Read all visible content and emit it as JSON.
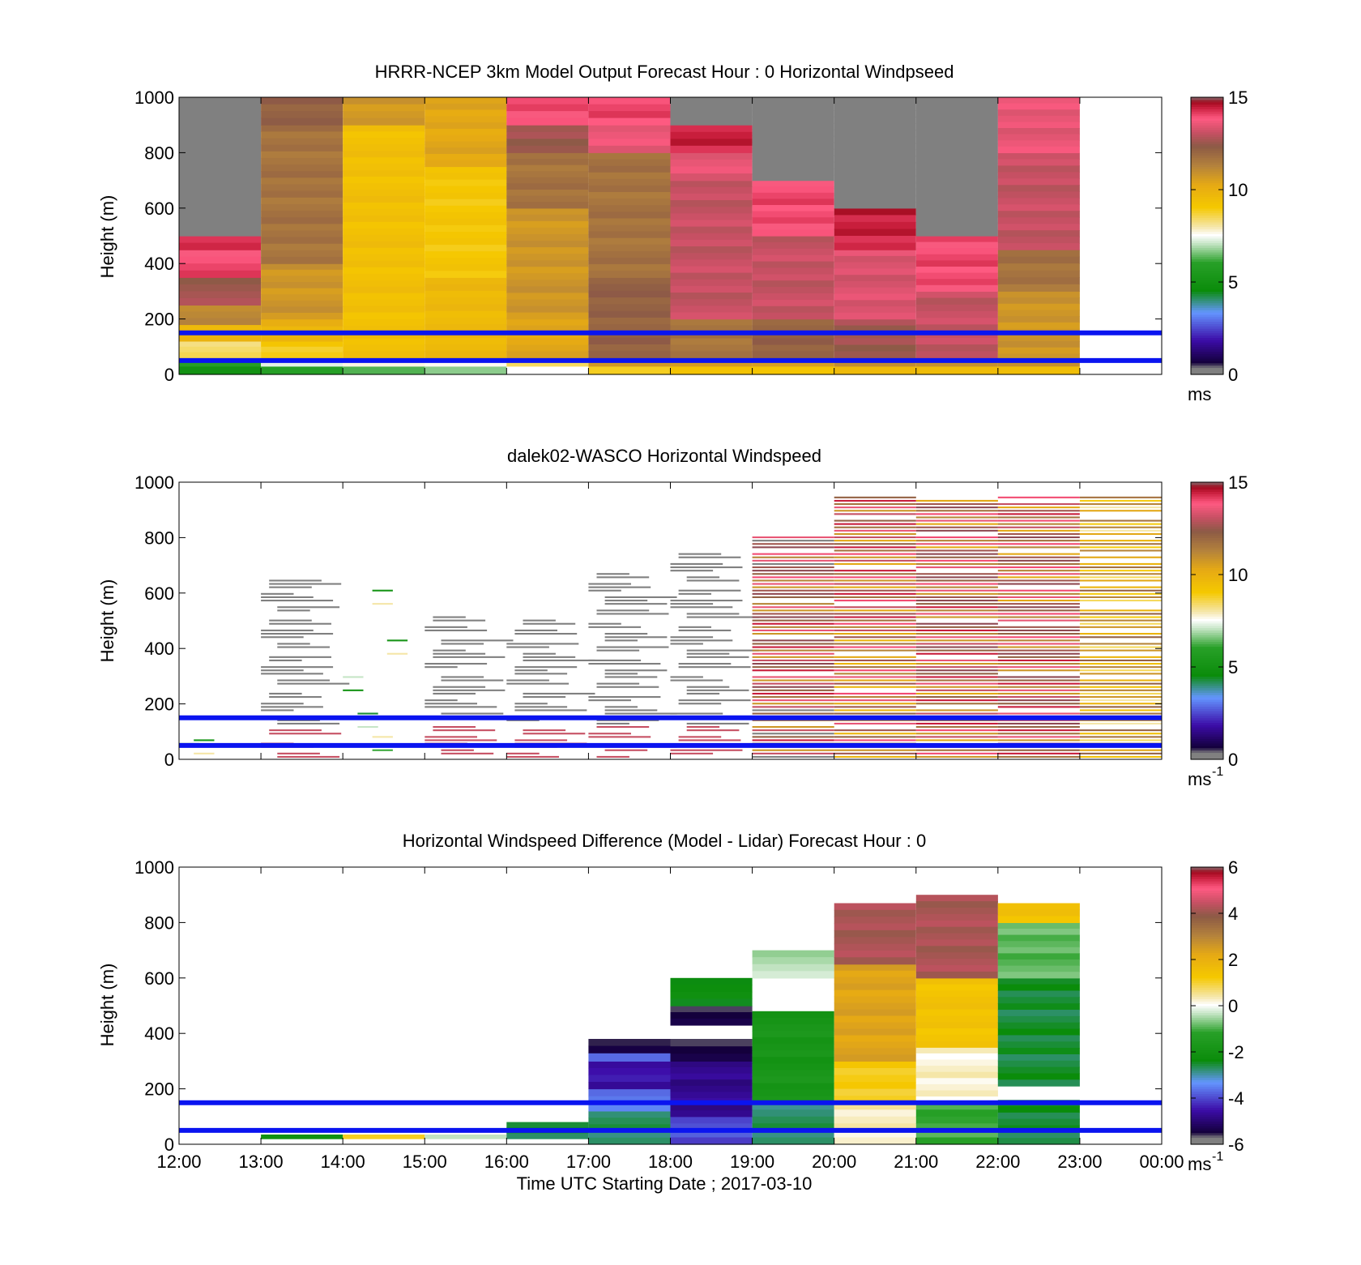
{
  "figure": {
    "xlabel": "Time UTC  Starting Date ; 2017-03-10",
    "x_ticks": [
      "12:00",
      "13:00",
      "14:00",
      "15:00",
      "16:00",
      "17:00",
      "18:00",
      "19:00",
      "20:00",
      "21:00",
      "22:00",
      "23:00",
      "00:00"
    ]
  },
  "chart_data": [
    {
      "type": "heatmap",
      "title": "HRRR-NCEP 3km Model Output   Forecast Hour : 0 Horizontal Windpseed",
      "ylabel": "Height (m)",
      "ylim": [
        0,
        1000
      ],
      "y_ticks": [
        "0",
        "200",
        "400",
        "600",
        "800",
        "1000"
      ],
      "xlim": [
        "12:00",
        "00:00"
      ],
      "colorbar": {
        "range": [
          0,
          15
        ],
        "ticks": [
          "0",
          "5",
          "10",
          "15"
        ],
        "unit": "ms"
      },
      "reference_lines_m": [
        50,
        150
      ],
      "reference_line_color": "#0a14f0",
      "missing_color": "#808080",
      "columns": [
        {
          "time": "12:00",
          "cells": [
            [
              0,
              30,
              5
            ],
            [
              30,
              60,
              6
            ],
            [
              60,
              120,
              8.5
            ],
            [
              120,
              180,
              10
            ],
            [
              180,
              250,
              11.5
            ],
            [
              250,
              350,
              13
            ],
            [
              350,
              450,
              14.5
            ],
            [
              450,
              500,
              15
            ],
            [
              500,
              1000,
              null
            ]
          ]
        },
        {
          "time": "13:00",
          "cells": [
            [
              0,
              30,
              5.5
            ],
            [
              30,
              60,
              7
            ],
            [
              60,
              120,
              9
            ],
            [
              120,
              200,
              10
            ],
            [
              200,
              400,
              11
            ],
            [
              400,
              900,
              12
            ],
            [
              900,
              1000,
              12.5
            ]
          ]
        },
        {
          "time": "14:00",
          "cells": [
            [
              0,
              30,
              6
            ],
            [
              30,
              60,
              7.5
            ],
            [
              60,
              900,
              9.5
            ],
            [
              900,
              1000,
              11
            ]
          ]
        },
        {
          "time": "15:00",
          "cells": [
            [
              0,
              30,
              6.5
            ],
            [
              30,
              60,
              7.5
            ],
            [
              60,
              350,
              9.8
            ],
            [
              350,
              750,
              9.2
            ],
            [
              750,
              1000,
              10.5
            ]
          ]
        },
        {
          "time": "16:00",
          "cells": [
            [
              0,
              30,
              7.5
            ],
            [
              30,
              60,
              8.5
            ],
            [
              60,
              200,
              10.5
            ],
            [
              200,
              600,
              11
            ],
            [
              600,
              800,
              12
            ],
            [
              800,
              900,
              13
            ],
            [
              900,
              1000,
              14.5
            ]
          ]
        },
        {
          "time": "17:00",
          "cells": [
            [
              0,
              30,
              9
            ],
            [
              30,
              60,
              11
            ],
            [
              60,
              350,
              12.5
            ],
            [
              350,
              800,
              12
            ],
            [
              800,
              900,
              14
            ],
            [
              900,
              1000,
              14.5
            ]
          ]
        },
        {
          "time": "18:00",
          "cells": [
            [
              0,
              30,
              9.5
            ],
            [
              30,
              60,
              11
            ],
            [
              60,
              200,
              12
            ],
            [
              200,
              700,
              13.5
            ],
            [
              700,
              800,
              14
            ],
            [
              800,
              900,
              15
            ],
            [
              900,
              1000,
              null
            ]
          ]
        },
        {
          "time": "19:00",
          "cells": [
            [
              0,
              30,
              9.5
            ],
            [
              30,
              60,
              11
            ],
            [
              60,
              200,
              12.5
            ],
            [
              200,
              500,
              13.5
            ],
            [
              500,
              700,
              14.5
            ],
            [
              700,
              1000,
              null
            ]
          ]
        },
        {
          "time": "20:00",
          "cells": [
            [
              0,
              30,
              9.5
            ],
            [
              30,
              60,
              11
            ],
            [
              60,
              200,
              13
            ],
            [
              200,
              450,
              13.8
            ],
            [
              450,
              600,
              15
            ],
            [
              600,
              1000,
              null
            ]
          ]
        },
        {
          "time": "21:00",
          "cells": [
            [
              0,
              30,
              9.5
            ],
            [
              30,
              60,
              11
            ],
            [
              60,
              300,
              13.5
            ],
            [
              300,
              500,
              14.5
            ],
            [
              500,
              1000,
              null
            ]
          ]
        },
        {
          "time": "22:00",
          "cells": [
            [
              0,
              30,
              9.5
            ],
            [
              30,
              300,
              11
            ],
            [
              300,
              450,
              12
            ],
            [
              450,
              800,
              13.5
            ],
            [
              800,
              1000,
              14
            ]
          ]
        }
      ]
    },
    {
      "type": "heatmap",
      "title": "dalek02-WASCO  Horizontal Windspeed",
      "ylabel": "Height (m)",
      "ylim": [
        0,
        1000
      ],
      "y_ticks": [
        "0",
        "200",
        "400",
        "600",
        "800",
        "1000"
      ],
      "xlim": [
        "12:00",
        "00:00"
      ],
      "colorbar": {
        "range": [
          0,
          15
        ],
        "ticks": [
          "0",
          "5",
          "10",
          "15"
        ],
        "unit": "ms",
        "unit_exponent": "-1"
      },
      "reference_lines_m": [
        50,
        150
      ],
      "reference_line_color": "#0a14f0",
      "missing_color": "#808080",
      "summary_by_hour": [
        {
          "time": "12:00",
          "coverage_top_m": 100,
          "typical_speed": 7,
          "note": "sparse low-level returns"
        },
        {
          "time": "13:00",
          "coverage_top_m": 650,
          "typical_speed": null,
          "note": "sparse returns, mostly missing"
        },
        {
          "time": "14:00",
          "coverage_top_m": 670,
          "typical_speed": 6,
          "note": "sparse returns"
        },
        {
          "time": "15:00",
          "coverage_top_m": 520,
          "typical_speed": null,
          "note": "sparse returns"
        },
        {
          "time": "16:00",
          "coverage_top_m": 500,
          "typical_speed": null,
          "note": "gray coverage begins mid-hour"
        },
        {
          "time": "17:00",
          "coverage_top_m": 700,
          "typical_speed": null,
          "note": "mostly gray, red near surface"
        },
        {
          "time": "18:00",
          "coverage_top_m": 750,
          "typical_speed": null,
          "note": "mostly gray"
        },
        {
          "time": "19:00",
          "coverage_top_m": 800,
          "typical_speed": 13.5,
          "note": "dense pink/red"
        },
        {
          "time": "20:00",
          "coverage_top_m": 950,
          "typical_speed": 12.5,
          "note": "dense brown/pink"
        },
        {
          "time": "21:00",
          "coverage_top_m": 950,
          "typical_speed": 13,
          "note": "dense pink/brown"
        },
        {
          "time": "22:00",
          "coverage_top_m": 950,
          "typical_speed": 13,
          "note": "dense pink/red"
        },
        {
          "time": "23:00",
          "coverage_top_m": 950,
          "typical_speed": 10,
          "note": "dense yellow/brown"
        }
      ]
    },
    {
      "type": "heatmap",
      "title": "Horizontal Windspeed Difference (Model - Lidar) Forecast Hour : 0",
      "ylabel": "Height (m)",
      "ylim": [
        0,
        1000
      ],
      "y_ticks": [
        "0",
        "200",
        "400",
        "600",
        "800",
        "1000"
      ],
      "xlim": [
        "12:00",
        "00:00"
      ],
      "colorbar": {
        "range": [
          -6,
          6
        ],
        "ticks": [
          "-6",
          "-4",
          "-2",
          "0",
          "2",
          "4",
          "6"
        ],
        "unit": "ms",
        "unit_exponent": "-1"
      },
      "reference_lines_m": [
        50,
        150
      ],
      "reference_line_color": "#0a14f0",
      "columns": [
        {
          "time": "13:00",
          "cells": [
            [
              20,
              35,
              -2.5
            ]
          ]
        },
        {
          "time": "14:00",
          "cells": [
            [
              20,
              35,
              1
            ]
          ]
        },
        {
          "time": "15:00",
          "cells": [
            [
              20,
              35,
              -0.5
            ]
          ]
        },
        {
          "time": "16:00",
          "cells": [
            [
              20,
              80,
              -2.8
            ]
          ]
        },
        {
          "time": "17:00",
          "cells": [
            [
              0,
              120,
              -3
            ],
            [
              120,
              200,
              -4
            ],
            [
              200,
              300,
              -5
            ],
            [
              300,
              330,
              -4
            ],
            [
              330,
              380,
              -6
            ]
          ]
        },
        {
          "time": "18:00",
          "cells": [
            [
              0,
              100,
              -4.3
            ],
            [
              100,
              300,
              -5.2
            ],
            [
              300,
              380,
              -6
            ],
            [
              430,
              500,
              -6
            ],
            [
              500,
              600,
              -2.5
            ]
          ]
        },
        {
          "time": "19:00",
          "cells": [
            [
              0,
              150,
              -3
            ],
            [
              150,
              480,
              -2
            ],
            [
              600,
              700,
              -0.5
            ]
          ]
        },
        {
          "time": "20:00",
          "cells": [
            [
              0,
              150,
              0.3
            ],
            [
              150,
              300,
              1.2
            ],
            [
              300,
              650,
              2.5
            ],
            [
              650,
              870,
              4.5
            ]
          ]
        },
        {
          "time": "21:00",
          "cells": [
            [
              0,
              150,
              -1.2
            ],
            [
              150,
              350,
              0.2
            ],
            [
              350,
              600,
              1.5
            ],
            [
              600,
              900,
              4.5
            ]
          ]
        },
        {
          "time": "22:00",
          "cells": [
            [
              0,
              160,
              -2.8
            ],
            [
              210,
              600,
              -2.8
            ],
            [
              600,
              800,
              -1
            ],
            [
              800,
              870,
              1.5
            ]
          ]
        }
      ]
    }
  ]
}
